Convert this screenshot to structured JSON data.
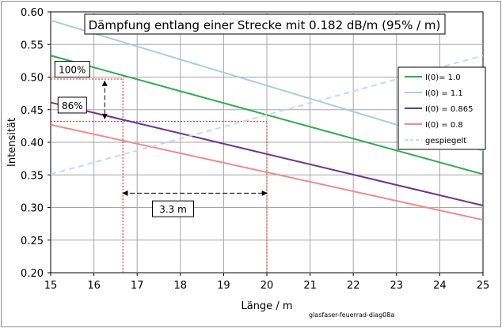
{
  "chart_data": {
    "type": "line",
    "title": "Dämpfung entlang einer Strecke mit 0.182 dB/m  (95% / m)",
    "xlabel": "Länge / m",
    "ylabel": "Intensität",
    "xlim": [
      15,
      25
    ],
    "ylim": [
      0.2,
      0.6
    ],
    "x_ticks": [
      "15",
      "16",
      "17",
      "18",
      "19",
      "20",
      "21",
      "22",
      "23",
      "24",
      "25"
    ],
    "y_ticks": [
      "0.20",
      "0.25",
      "0.30",
      "0.35",
      "0.40",
      "0.45",
      "0.50",
      "0.55",
      "0.60"
    ],
    "grid": true,
    "legend_position": "right",
    "series": [
      {
        "name": "I(0)= 1.0",
        "color": "#2eab50",
        "dash": "solid",
        "x": [
          15,
          25
        ],
        "y": [
          0.533,
          0.351
        ]
      },
      {
        "name": "I(0) = 1.1",
        "color": "#a9cde0",
        "dash": "solid",
        "x": [
          15,
          25
        ],
        "y": [
          0.587,
          0.387
        ]
      },
      {
        "name": "I(0) = 0.865",
        "color": "#6a3496",
        "dash": "solid",
        "x": [
          15,
          25
        ],
        "y": [
          0.461,
          0.303
        ]
      },
      {
        "name": "I(0) = 0.8",
        "color": "#f28a8a",
        "dash": "solid",
        "x": [
          15,
          25
        ],
        "y": [
          0.427,
          0.281
        ]
      },
      {
        "name": "gespiegelt",
        "color": "#c6d9ef",
        "dash": "dashed",
        "x": [
          15,
          25
        ],
        "y": [
          0.351,
          0.533
        ]
      }
    ],
    "reference_lines": [
      {
        "kind": "h",
        "y": 0.497,
        "x_from": 15,
        "x_to": 16.67,
        "color": "#e01b1b"
      },
      {
        "kind": "h",
        "y": 0.432,
        "x_from": 15,
        "x_to": 20.0,
        "color": "#e01b1b"
      },
      {
        "kind": "v",
        "x": 16.67,
        "y_from": 0.2,
        "y_to": 0.497,
        "color": "#e01b1b"
      },
      {
        "kind": "v",
        "x": 20.0,
        "y_from": 0.2,
        "y_to": 0.432,
        "color": "#e01b1b"
      }
    ],
    "annotations": [
      {
        "text": "100%",
        "x": 15.5,
        "y": 0.512
      },
      {
        "text": "86%",
        "x": 15.5,
        "y": 0.457
      },
      {
        "text": "3.3 m",
        "x": 17.83,
        "y": 0.298
      }
    ],
    "arrows": [
      {
        "from": [
          16.25,
          0.494
        ],
        "to": [
          16.25,
          0.436
        ],
        "double": true
      },
      {
        "from": [
          16.67,
          0.322
        ],
        "to": [
          20.0,
          0.322
        ],
        "double": true
      }
    ],
    "footnote": "glasfaser-feuerrad-diag08a"
  }
}
